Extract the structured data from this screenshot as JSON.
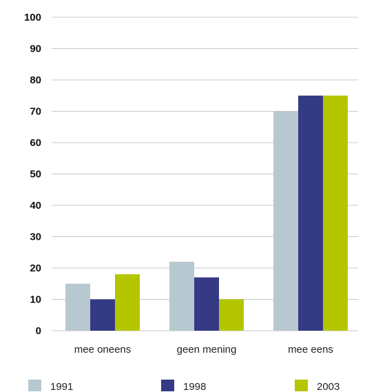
{
  "chart_data": {
    "type": "bar",
    "title": "",
    "xlabel": "",
    "ylabel": "",
    "categories": [
      "mee oneens",
      "geen mening",
      "mee eens"
    ],
    "series": [
      {
        "name": "1991",
        "values": [
          15,
          22,
          70
        ],
        "color": "#b8c8d0"
      },
      {
        "name": "1998",
        "values": [
          10,
          17,
          75
        ],
        "color": "#353a84"
      },
      {
        "name": "2003",
        "values": [
          18,
          10,
          75
        ],
        "color": "#b3c600"
      }
    ],
    "ylim": [
      0,
      100
    ],
    "yticks": [
      0,
      10,
      20,
      30,
      40,
      50,
      60,
      70,
      80,
      90,
      100
    ],
    "grid": true,
    "legend_position": "bottom"
  }
}
